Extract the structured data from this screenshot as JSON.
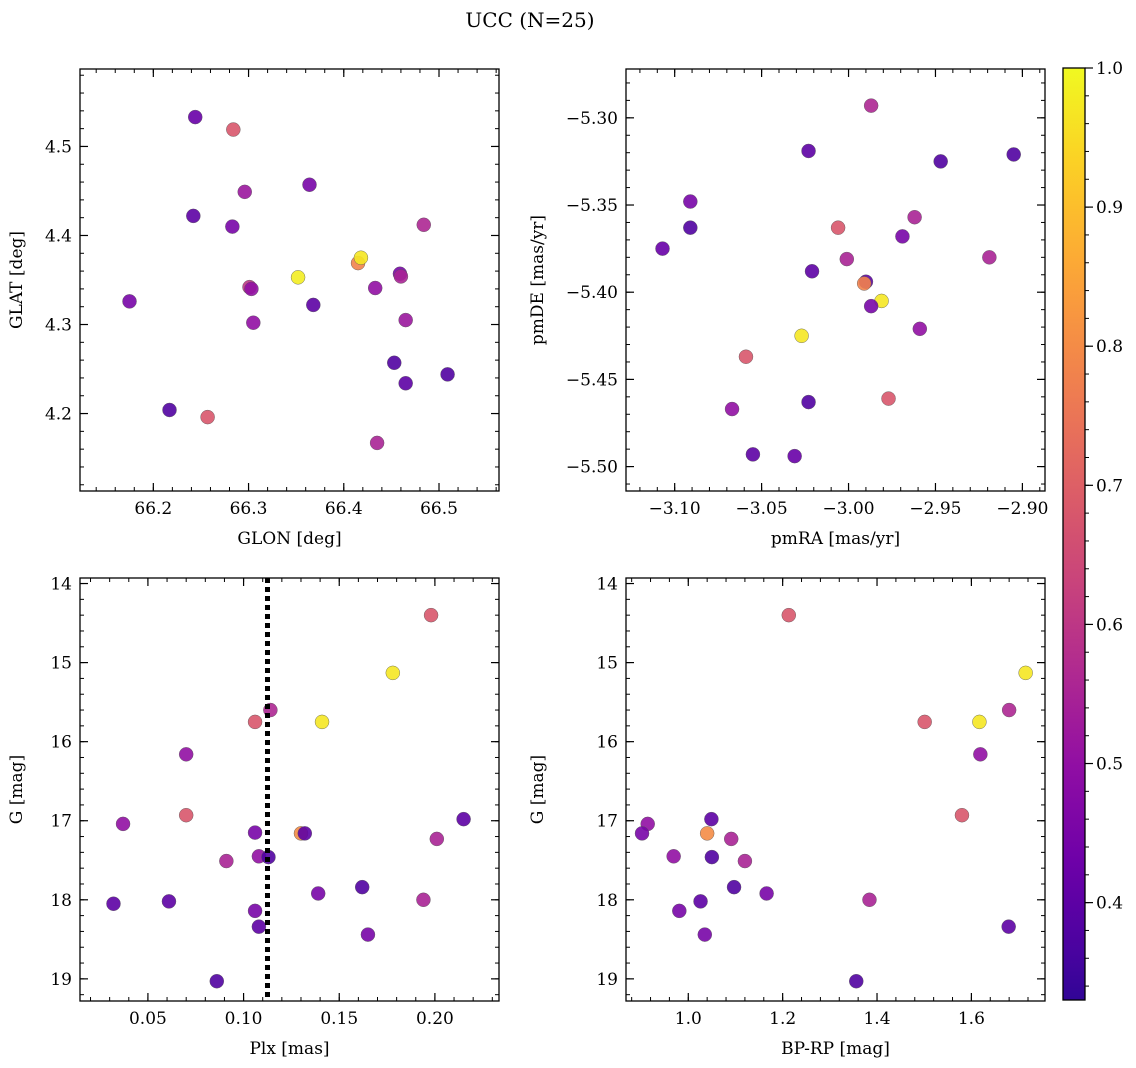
{
  "figure": {
    "title": "UCC (N=25)"
  },
  "colorbar": {
    "min": 0.33,
    "max": 1.0,
    "ticks": [
      0.4,
      0.5,
      0.6,
      0.7,
      0.8,
      0.9,
      1.0
    ],
    "colormap": "plasma"
  },
  "chart_data": [
    {
      "type": "scatter",
      "xlabel": "GLON [deg]",
      "ylabel": "GLAT [deg]",
      "xlim": [
        66.123,
        66.563
      ],
      "ylim": [
        4.113,
        4.587
      ],
      "y_inverted": false,
      "xticks": [
        66.2,
        66.3,
        66.4,
        66.5
      ],
      "yticks": [
        4.2,
        4.3,
        4.4,
        4.5
      ],
      "x": [
        66.244,
        66.284,
        66.242,
        66.283,
        66.296,
        66.364,
        66.175,
        66.301,
        66.303,
        66.305,
        66.352,
        66.368,
        66.415,
        66.418,
        66.459,
        66.46,
        66.433,
        66.465,
        66.484,
        66.453,
        66.465,
        66.509,
        66.217,
        66.257,
        66.435
      ],
      "y": [
        4.533,
        4.519,
        4.422,
        4.41,
        4.449,
        4.457,
        4.326,
        4.342,
        4.34,
        4.302,
        4.353,
        4.322,
        4.369,
        4.375,
        4.357,
        4.354,
        4.341,
        4.305,
        4.412,
        4.257,
        4.234,
        4.244,
        4.204,
        4.196,
        4.167
      ],
      "c": [
        0.42,
        0.68,
        0.4,
        0.45,
        0.52,
        0.45,
        0.45,
        0.6,
        0.5,
        0.5,
        0.98,
        0.4,
        0.78,
        0.97,
        0.45,
        0.55,
        0.5,
        0.52,
        0.56,
        0.38,
        0.4,
        0.38,
        0.38,
        0.68,
        0.55
      ]
    },
    {
      "type": "scatter",
      "xlabel": "pmRA [mas/yr]",
      "ylabel": "pmDE [mas/yr]",
      "xlim": [
        -3.128,
        -2.887
      ],
      "ylim": [
        -5.514,
        -5.272
      ],
      "y_inverted": false,
      "xticks": [
        -3.1,
        -3.05,
        -3.0,
        -2.95,
        -2.9
      ],
      "yticks": [
        -5.3,
        -5.35,
        -5.4,
        -5.45,
        -5.5
      ],
      "x": [
        -2.987,
        -3.023,
        -2.947,
        -2.905,
        -3.091,
        -3.091,
        -3.107,
        -3.006,
        -2.962,
        -2.969,
        -3.001,
        -2.919,
        -3.021,
        -2.99,
        -2.991,
        -2.981,
        -2.987,
        -2.959,
        -3.027,
        -3.059,
        -3.067,
        -2.977,
        -3.023,
        -3.055,
        -3.031
      ],
      "y": [
        -5.293,
        -5.319,
        -5.325,
        -5.321,
        -5.348,
        -5.363,
        -5.375,
        -5.363,
        -5.357,
        -5.368,
        -5.381,
        -5.38,
        -5.388,
        -5.394,
        -5.395,
        -5.405,
        -5.408,
        -5.421,
        -5.425,
        -5.437,
        -5.467,
        -5.461,
        -5.463,
        -5.493,
        -5.494
      ],
      "c": [
        0.56,
        0.4,
        0.38,
        0.38,
        0.45,
        0.38,
        0.42,
        0.68,
        0.55,
        0.45,
        0.55,
        0.55,
        0.4,
        0.4,
        0.78,
        0.97,
        0.45,
        0.5,
        0.97,
        0.68,
        0.5,
        0.68,
        0.38,
        0.4,
        0.42
      ]
    },
    {
      "type": "scatter",
      "xlabel": "Plx [mas]",
      "ylabel": "G [mag]",
      "xlim": [
        0.0145,
        0.2335
      ],
      "ylim": [
        13.93,
        19.28
      ],
      "y_inverted": true,
      "xticks": [
        0.05,
        0.1,
        0.15,
        0.2
      ],
      "yticks": [
        14,
        15,
        16,
        17,
        18,
        19
      ],
      "vline": {
        "x": 0.1125,
        "style": "dotted",
        "color": "#000000"
      },
      "x": [
        0.198,
        0.178,
        0.141,
        0.106,
        0.114,
        0.07,
        0.037,
        0.07,
        0.106,
        0.13,
        0.132,
        0.215,
        0.201,
        0.091,
        0.108,
        0.113,
        0.139,
        0.162,
        0.194,
        0.032,
        0.061,
        0.106,
        0.108,
        0.165,
        0.086
      ],
      "y": [
        14.4,
        15.13,
        15.75,
        15.75,
        15.6,
        16.16,
        17.04,
        16.93,
        17.15,
        17.16,
        17.16,
        16.98,
        17.23,
        17.51,
        17.45,
        17.46,
        17.92,
        17.84,
        18.0,
        18.05,
        18.02,
        18.14,
        18.34,
        18.44,
        19.03
      ],
      "c": [
        0.68,
        0.97,
        0.97,
        0.68,
        0.56,
        0.5,
        0.5,
        0.68,
        0.45,
        0.8,
        0.4,
        0.4,
        0.55,
        0.55,
        0.5,
        0.38,
        0.45,
        0.38,
        0.55,
        0.4,
        0.4,
        0.45,
        0.4,
        0.45,
        0.38
      ]
    },
    {
      "type": "scatter",
      "xlabel": "BP-RP [mag]",
      "ylabel": "G [mag]",
      "xlim": [
        0.868,
        1.756
      ],
      "ylim": [
        13.93,
        19.28
      ],
      "y_inverted": true,
      "xticks": [
        1.0,
        1.2,
        1.4,
        1.6
      ],
      "yticks": [
        14,
        15,
        16,
        17,
        18,
        19
      ],
      "x": [
        1.213,
        1.715,
        1.501,
        1.617,
        1.68,
        1.619,
        1.049,
        1.58,
        0.914,
        0.902,
        1.04,
        1.091,
        0.969,
        1.05,
        1.12,
        1.097,
        1.166,
        1.384,
        0.981,
        1.026,
        1.679,
        1.035,
        1.356
      ],
      "y": [
        14.4,
        15.13,
        15.75,
        15.75,
        15.6,
        16.16,
        16.98,
        16.93,
        17.04,
        17.16,
        17.16,
        17.23,
        17.45,
        17.46,
        17.51,
        17.84,
        17.92,
        18.0,
        18.14,
        18.02,
        18.34,
        18.44,
        19.03
      ],
      "c": [
        0.68,
        0.97,
        0.68,
        0.97,
        0.56,
        0.5,
        0.4,
        0.68,
        0.5,
        0.45,
        0.8,
        0.55,
        0.5,
        0.38,
        0.55,
        0.38,
        0.45,
        0.55,
        0.45,
        0.4,
        0.4,
        0.45,
        0.38
      ]
    }
  ]
}
